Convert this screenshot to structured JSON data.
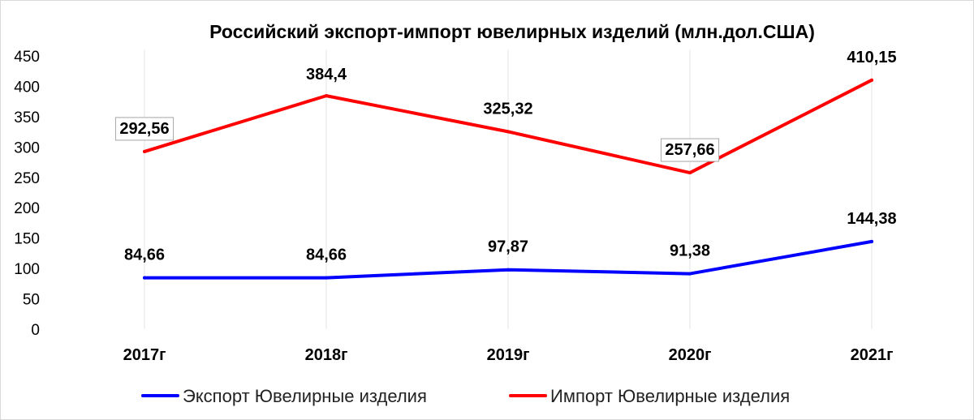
{
  "chart_data": {
    "type": "line",
    "title": "Российский экспорт-импорт ювелирных изделий (млн.дол.США)",
    "categories": [
      "2017г",
      "2018г",
      "2019г",
      "2020г",
      "2021г"
    ],
    "ylim": [
      0,
      450
    ],
    "yticks": [
      0,
      50,
      100,
      150,
      200,
      250,
      300,
      350,
      400,
      450
    ],
    "grid": "vertical",
    "legend_position": "bottom",
    "series": [
      {
        "name": "Экспорт Ювелирные изделия",
        "color": "#0000ff",
        "values": [
          84.66,
          84.66,
          97.87,
          91.38,
          144.38
        ],
        "labels": [
          "84,66",
          "84,66",
          "97,87",
          "91,38",
          "144,38"
        ]
      },
      {
        "name": "Импорт Ювелирные изделия",
        "color": "#ff0000",
        "values": [
          292.56,
          384.4,
          325.32,
          257.66,
          410.15
        ],
        "labels": [
          "292,56",
          "384,4",
          "325,32",
          "257,66",
          "410,15"
        ],
        "boxed_labels": [
          true,
          false,
          false,
          true,
          false
        ]
      }
    ]
  }
}
